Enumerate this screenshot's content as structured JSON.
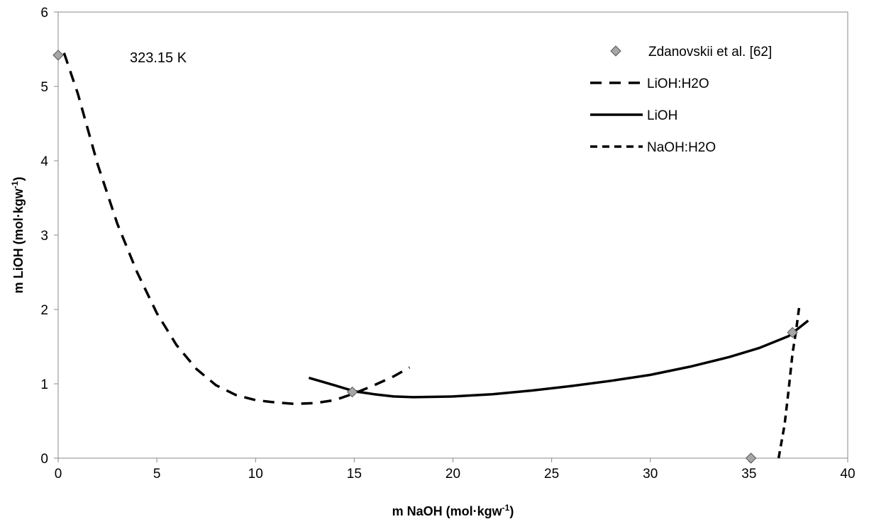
{
  "chart_data": {
    "type": "scatter",
    "annotation": "323.15 K",
    "xlabel": {
      "main": "m NaOH (mol·kgw",
      "sup": "-1",
      "tail": ")"
    },
    "ylabel": {
      "main": "m LiOH (mol·kgw",
      "sup": "-1",
      "tail": ")"
    },
    "xlim": [
      0,
      40
    ],
    "ylim": [
      0,
      6
    ],
    "xticks": [
      "0",
      "5",
      "10",
      "15",
      "20",
      "25",
      "30",
      "35",
      "40"
    ],
    "yticks": [
      "0",
      "1",
      "2",
      "3",
      "4",
      "5",
      "6"
    ],
    "grid": false,
    "legend_position": "top-right",
    "colors": {
      "marker_fill": "#a6a6a6",
      "line": "#000000"
    },
    "series": [
      {
        "name": "Zdanovskii et al.  [62]",
        "kind": "markers",
        "marker": "diamond",
        "points": [
          [
            0,
            5.42
          ],
          [
            14.9,
            0.89
          ],
          [
            35.1,
            0.0
          ],
          [
            37.2,
            1.69
          ]
        ]
      },
      {
        "name": "LiOH:H2O",
        "kind": "line",
        "dash": "long",
        "points": [
          [
            0.3,
            5.45
          ],
          [
            1.0,
            4.9
          ],
          [
            2.0,
            3.95
          ],
          [
            3.0,
            3.15
          ],
          [
            4.0,
            2.5
          ],
          [
            5.0,
            1.95
          ],
          [
            6.0,
            1.52
          ],
          [
            7.0,
            1.2
          ],
          [
            8.0,
            0.98
          ],
          [
            9.0,
            0.85
          ],
          [
            10.0,
            0.78
          ],
          [
            11.0,
            0.75
          ],
          [
            12.0,
            0.73
          ],
          [
            13.0,
            0.74
          ],
          [
            14.0,
            0.78
          ],
          [
            15.0,
            0.87
          ],
          [
            16.0,
            0.98
          ],
          [
            17.0,
            1.1
          ],
          [
            17.8,
            1.22
          ]
        ]
      },
      {
        "name": "LiOH",
        "kind": "line",
        "dash": "solid",
        "points": [
          [
            12.7,
            1.08
          ],
          [
            14.0,
            0.98
          ],
          [
            15.0,
            0.9
          ],
          [
            16.0,
            0.86
          ],
          [
            17.0,
            0.83
          ],
          [
            18.0,
            0.82
          ],
          [
            20.0,
            0.83
          ],
          [
            22.0,
            0.86
          ],
          [
            24.0,
            0.91
          ],
          [
            26.0,
            0.97
          ],
          [
            28.0,
            1.04
          ],
          [
            30.0,
            1.12
          ],
          [
            32.0,
            1.23
          ],
          [
            34.0,
            1.36
          ],
          [
            35.5,
            1.48
          ],
          [
            37.0,
            1.64
          ],
          [
            38.0,
            1.85
          ]
        ]
      },
      {
        "name": "NaOH:H2O",
        "kind": "line",
        "dash": "short",
        "points": [
          [
            36.5,
            0.0
          ],
          [
            36.8,
            0.45
          ],
          [
            37.0,
            0.9
          ],
          [
            37.2,
            1.4
          ],
          [
            37.4,
            1.75
          ],
          [
            37.55,
            2.05
          ]
        ]
      }
    ]
  }
}
